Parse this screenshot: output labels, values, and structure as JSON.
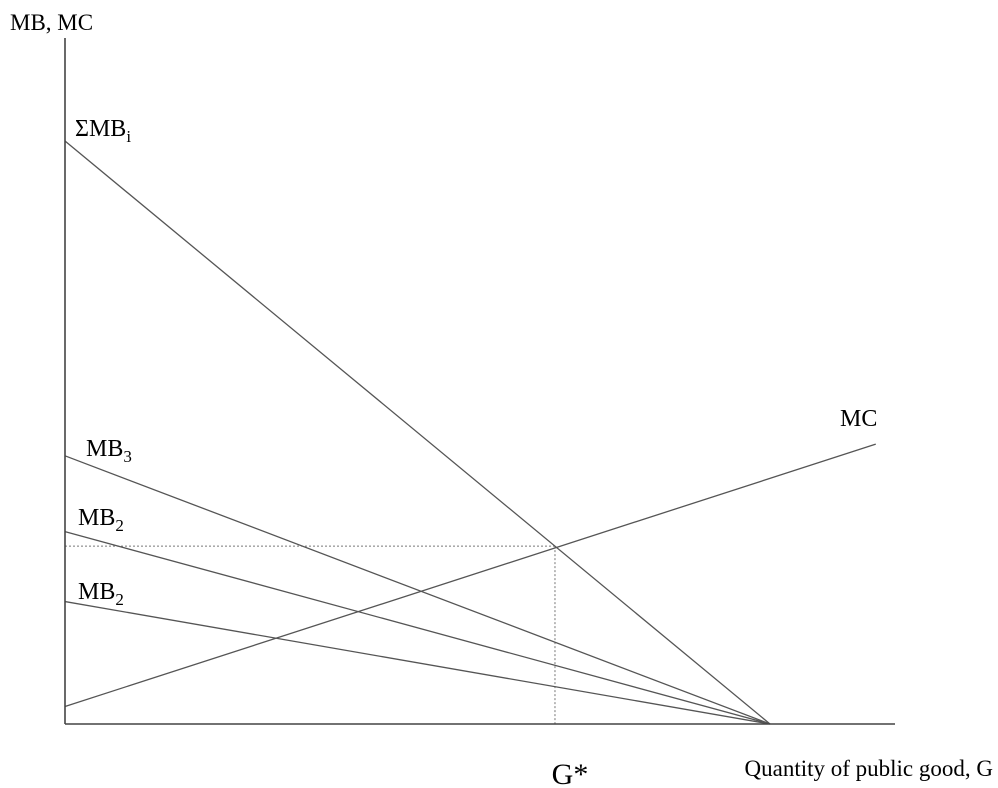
{
  "chart_data": {
    "type": "line",
    "title": "",
    "xlabel": "Quantity of public good, G",
    "ylabel": "MB, MC",
    "xlim": [
      0,
      10
    ],
    "ylim": [
      0,
      10
    ],
    "grid": false,
    "series": [
      {
        "name": "ΣMB_i",
        "label_main": "ΣMB",
        "label_sub": "i",
        "x": [
          0,
          10
        ],
        "y": [
          10,
          0
        ]
      },
      {
        "name": "MB_3",
        "label_main": "MB",
        "label_sub": "3",
        "x": [
          0,
          10
        ],
        "y": [
          4.6,
          0
        ]
      },
      {
        "name": "MB_2",
        "label_main": "MB",
        "label_sub": "2",
        "x": [
          0,
          10
        ],
        "y": [
          3.3,
          0
        ]
      },
      {
        "name": "MB_2",
        "label_main": "MB",
        "label_sub": "2",
        "x": [
          0,
          10
        ],
        "y": [
          2.1,
          0
        ]
      },
      {
        "name": "MC",
        "label_main": "MC",
        "label_sub": "",
        "x": [
          0,
          11.5
        ],
        "y": [
          0.3,
          4.8
        ]
      }
    ],
    "annotations": {
      "optimum_label": "G*",
      "optimum_x": 6.95,
      "optimum_y": 3.05
    }
  }
}
